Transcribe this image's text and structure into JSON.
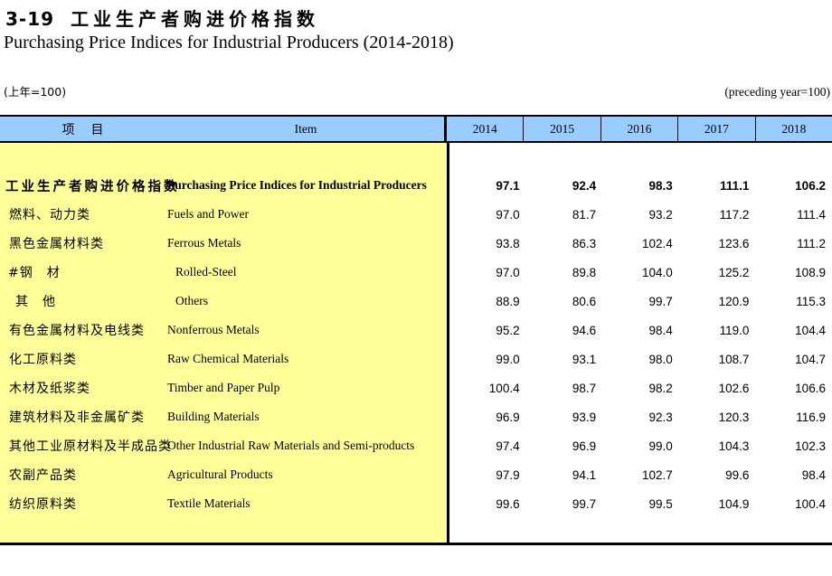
{
  "header": {
    "table_no": "3-19",
    "title_cn": "工业生产者购进价格指数",
    "title_en": "Purchasing Price Indices for Industrial Producers (2014-2018)"
  },
  "notes": {
    "left": "(上年=100)",
    "right": "(preceding year=100)"
  },
  "table": {
    "item_header_cn": "项　目",
    "item_header_en": "Item",
    "years": [
      "2014",
      "2015",
      "2016",
      "2017",
      "2018"
    ],
    "rows": [
      {
        "cn": "工业生产者购进价格指数",
        "en": "Purchasing Price Indices for Industrial Producers",
        "values": [
          "97.1",
          "92.4",
          "98.3",
          "111.1",
          "106.2"
        ]
      },
      {
        "cn": "燃料、动力类",
        "en": "Fuels and Power",
        "values": [
          "97.0",
          "81.7",
          "93.2",
          "117.2",
          "111.4"
        ]
      },
      {
        "cn": "黑色金属材料类",
        "en": "Ferrous Metals",
        "values": [
          "93.8",
          "86.3",
          "102.4",
          "123.6",
          "111.2"
        ]
      },
      {
        "cn": "#钢　材",
        "en": "Rolled-Steel",
        "values": [
          "97.0",
          "89.8",
          "104.0",
          "125.2",
          "108.9"
        ]
      },
      {
        "cn": "其　他",
        "en": "Others",
        "values": [
          "88.9",
          "80.6",
          "99.7",
          "120.9",
          "115.3"
        ]
      },
      {
        "cn": "有色金属材料及电线类",
        "en": "Nonferrous Metals",
        "values": [
          "95.2",
          "94.6",
          "98.4",
          "119.0",
          "104.4"
        ]
      },
      {
        "cn": "化工原料类",
        "en": "Raw Chemical Materials",
        "values": [
          "99.0",
          "93.1",
          "98.0",
          "108.7",
          "104.7"
        ]
      },
      {
        "cn": "木材及纸浆类",
        "en": "Timber and Paper Pulp",
        "values": [
          "100.4",
          "98.7",
          "98.2",
          "102.6",
          "106.6"
        ]
      },
      {
        "cn": "建筑材料及非金属矿类",
        "en": "Building Materials",
        "values": [
          "96.9",
          "93.9",
          "92.3",
          "120.3",
          "116.9"
        ]
      },
      {
        "cn": "其他工业原材料及半成品类",
        "en": "Other Industrial Raw Materials and Semi-products",
        "values": [
          "97.4",
          "96.9",
          "99.0",
          "104.3",
          "102.3"
        ]
      },
      {
        "cn": "农副产品类",
        "en": "Agricultural Products",
        "values": [
          "97.9",
          "94.1",
          "102.7",
          "99.6",
          "98.4"
        ]
      },
      {
        "cn": "纺织原料类",
        "en": "Textile Materials",
        "values": [
          "99.6",
          "99.7",
          "99.5",
          "104.9",
          "100.4"
        ]
      }
    ]
  },
  "colors": {
    "header_bg": "#99CCFF",
    "item_panel_bg": "#FFFF99",
    "border": "#000000"
  }
}
